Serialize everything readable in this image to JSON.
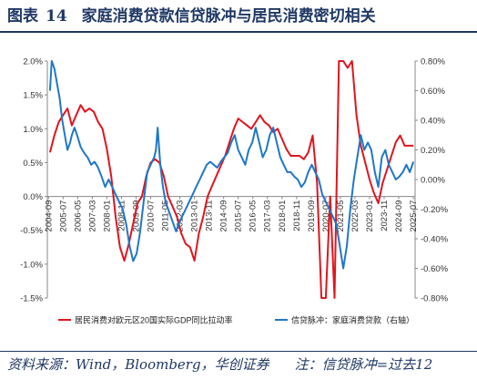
{
  "header": {
    "fig_label": "图表",
    "fig_number": "14",
    "title": "家庭消费贷款信贷脉冲与居民消费密切相关"
  },
  "footer": {
    "source": "资料来源：Wind，Bloomberg，华创证券",
    "note": "注：信贷脉冲=过去12"
  },
  "colors": {
    "left_series": "#e0141e",
    "right_series": "#1f77c8",
    "axis": "#888888",
    "title": "#1f3864"
  },
  "chart_data": {
    "type": "line",
    "x_axis_ticks": [
      "2004-09",
      "2005-07",
      "2006-05",
      "2007-03",
      "2008-01",
      "2008-11",
      "2009-09",
      "2010-07",
      "2011-05",
      "2012-03",
      "2013-01",
      "2013-11",
      "2014-09",
      "2015-07",
      "2016-05",
      "2017-03",
      "2018-01",
      "2018-11",
      "2019-09",
      "2020-07",
      "2021-05",
      "2022-03",
      "2023-01",
      "2023-11",
      "2024-09",
      "2025-07"
    ],
    "left_axis": {
      "ylim": [
        -1.5,
        2.0
      ],
      "tick_labels": [
        "2.0%",
        "1.5%",
        "1.0%",
        "0.5%",
        "0.0%",
        "-0.5%",
        "-1.0%",
        "-1.5%"
      ]
    },
    "right_axis": {
      "ylim": [
        -0.8,
        0.8
      ],
      "tick_labels": [
        "0.80%",
        "0.60%",
        "0.40%",
        "0.20%",
        "0.00%",
        "-0.20%",
        "-0.40%",
        "-0.60%",
        "-0.80%"
      ]
    },
    "series": [
      {
        "name": "居民消费对欧元区20国实际GDP同比拉动率",
        "axis": "left",
        "unit": "%",
        "x": [
          2004.75,
          2005.0,
          2005.25,
          2005.5,
          2005.75,
          2006.0,
          2006.25,
          2006.5,
          2006.75,
          2007.0,
          2007.25,
          2007.5,
          2007.75,
          2008.0,
          2008.25,
          2008.5,
          2008.75,
          2009.0,
          2009.25,
          2009.5,
          2009.75,
          2010.0,
          2010.25,
          2010.5,
          2010.75,
          2011.0,
          2011.25,
          2011.5,
          2011.75,
          2012.0,
          2012.25,
          2012.5,
          2012.75,
          2013.0,
          2013.25,
          2013.5,
          2013.75,
          2014.0,
          2014.25,
          2014.5,
          2014.75,
          2015.0,
          2015.25,
          2015.5,
          2015.75,
          2016.0,
          2016.25,
          2016.5,
          2016.75,
          2017.0,
          2017.25,
          2017.5,
          2017.75,
          2018.0,
          2018.25,
          2018.5,
          2018.75,
          2019.0,
          2019.25,
          2019.5,
          2019.75,
          2020.0,
          2020.25,
          2020.5,
          2020.75,
          2021.0,
          2021.25,
          2021.5,
          2021.75,
          2022.0,
          2022.25,
          2022.5,
          2022.75,
          2023.0,
          2023.25,
          2023.5,
          2023.75,
          2024.0,
          2024.25,
          2024.5,
          2024.75,
          2025.0,
          2025.25,
          2025.5
        ],
        "values": [
          0.65,
          0.9,
          1.1,
          1.2,
          1.3,
          1.05,
          1.2,
          1.35,
          1.25,
          1.3,
          1.25,
          1.1,
          1.0,
          0.7,
          0.3,
          -0.3,
          -0.75,
          -0.95,
          -0.7,
          -0.4,
          -0.1,
          0.0,
          0.3,
          0.5,
          0.55,
          0.5,
          0.3,
          0.0,
          -0.15,
          -0.3,
          -0.55,
          -0.7,
          -0.75,
          -0.95,
          -0.55,
          -0.3,
          0.0,
          0.15,
          0.3,
          0.45,
          0.6,
          0.8,
          1.0,
          1.15,
          1.1,
          1.05,
          1.0,
          1.1,
          1.2,
          1.1,
          1.05,
          0.95,
          1.0,
          0.85,
          0.7,
          0.6,
          0.6,
          0.6,
          0.55,
          0.65,
          0.9,
          0.2,
          -1.5,
          -1.5,
          0.0,
          -1.5,
          2.0,
          2.0,
          1.9,
          2.0,
          1.2,
          0.75,
          0.5,
          0.25,
          0.05,
          -0.1,
          0.2,
          0.4,
          0.6,
          0.8,
          0.9,
          0.75,
          0.75,
          0.75
        ]
      },
      {
        "name": "信贷脉冲：家庭消费贷款（右轴）",
        "axis": "right",
        "unit": "%",
        "x": [
          2004.75,
          2004.85,
          2005.0,
          2005.15,
          2005.3,
          2005.45,
          2005.6,
          2005.75,
          2005.9,
          2006.0,
          2006.15,
          2006.3,
          2006.5,
          2006.7,
          2006.9,
          2007.1,
          2007.3,
          2007.5,
          2007.7,
          2007.9,
          2008.1,
          2008.3,
          2008.5,
          2008.7,
          2008.9,
          2009.1,
          2009.3,
          2009.5,
          2009.7,
          2009.9,
          2010.1,
          2010.3,
          2010.5,
          2010.7,
          2010.8,
          2010.9,
          2011.05,
          2011.2,
          2011.35,
          2011.5,
          2011.65,
          2011.8,
          2011.95,
          2012.1,
          2012.3,
          2012.5,
          2012.7,
          2012.9,
          2013.1,
          2013.3,
          2013.5,
          2013.7,
          2013.9,
          2014.1,
          2014.3,
          2014.5,
          2014.7,
          2014.9,
          2015.1,
          2015.3,
          2015.5,
          2015.7,
          2015.9,
          2016.1,
          2016.3,
          2016.5,
          2016.7,
          2016.9,
          2017.1,
          2017.3,
          2017.5,
          2017.7,
          2017.9,
          2018.1,
          2018.3,
          2018.5,
          2018.7,
          2018.9,
          2019.1,
          2019.3,
          2019.5,
          2019.7,
          2019.9,
          2020.1,
          2020.3,
          2020.5,
          2020.7,
          2020.9,
          2021.1,
          2021.3,
          2021.5,
          2021.7,
          2021.9,
          2022.1,
          2022.3,
          2022.5,
          2022.7,
          2022.9,
          2023.1,
          2023.3,
          2023.5,
          2023.7,
          2023.9,
          2024.1,
          2024.3,
          2024.5,
          2024.7,
          2024.9,
          2025.1,
          2025.3,
          2025.5
        ],
        "values": [
          0.6,
          0.8,
          0.75,
          0.65,
          0.55,
          0.4,
          0.3,
          0.2,
          0.25,
          0.3,
          0.35,
          0.3,
          0.22,
          0.18,
          0.15,
          0.1,
          0.12,
          0.08,
          0.02,
          -0.05,
          0.0,
          -0.05,
          -0.1,
          -0.15,
          -0.2,
          -0.3,
          -0.45,
          -0.55,
          -0.5,
          -0.35,
          -0.15,
          0.05,
          0.1,
          0.15,
          0.2,
          0.35,
          0.1,
          -0.05,
          -0.15,
          -0.2,
          -0.25,
          -0.3,
          -0.35,
          -0.3,
          -0.25,
          -0.2,
          -0.15,
          -0.1,
          -0.05,
          0.0,
          0.05,
          0.1,
          0.12,
          0.1,
          0.08,
          0.12,
          0.15,
          0.18,
          0.25,
          0.3,
          0.2,
          0.15,
          0.1,
          0.2,
          0.25,
          0.35,
          0.25,
          0.15,
          0.2,
          0.3,
          0.35,
          0.25,
          0.15,
          0.1,
          0.05,
          0.05,
          0.02,
          0.0,
          -0.05,
          -0.02,
          0.05,
          0.1,
          0.05,
          0.0,
          -0.1,
          -0.15,
          -0.2,
          -0.25,
          -0.3,
          -0.45,
          -0.6,
          -0.45,
          -0.2,
          0.0,
          0.15,
          0.3,
          0.2,
          0.25,
          0.2,
          0.05,
          -0.05,
          0.15,
          0.2,
          0.1,
          0.05,
          0.0,
          0.02,
          0.05,
          0.1,
          0.05,
          0.12
        ]
      }
    ],
    "legend": {
      "position": "bottom"
    },
    "grid": false
  }
}
